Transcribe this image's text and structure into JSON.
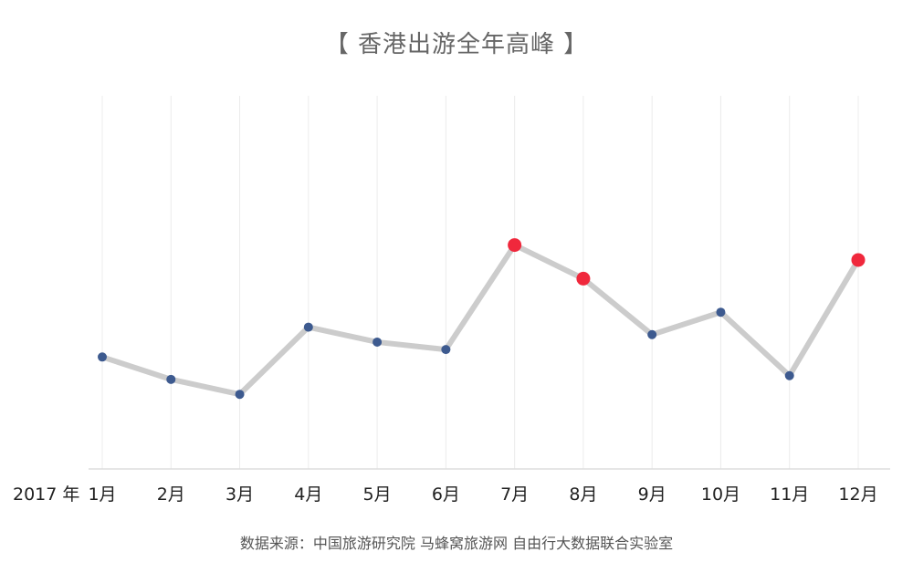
{
  "chart_data": {
    "type": "line",
    "title": "【 香港出游全年高峰 】",
    "x_prefix": "2017 年",
    "categories": [
      "1月",
      "2月",
      "3月",
      "4月",
      "5月",
      "6月",
      "7月",
      "8月",
      "9月",
      "10月",
      "11月",
      "12月"
    ],
    "series": [
      {
        "values": [
          30,
          24,
          20,
          38,
          34,
          32,
          60,
          51,
          36,
          42,
          25,
          56
        ],
        "highlight": [
          false,
          false,
          false,
          false,
          false,
          false,
          true,
          true,
          false,
          false,
          false,
          true
        ]
      }
    ],
    "ylim": [
      0,
      100
    ],
    "y_axis_visible": false,
    "grid": "vertical",
    "line_color": "#cccccc",
    "point_color": "#3d5a8f",
    "highlight_color": "#f0283c",
    "source": "数据来源：中国旅游研究院 马蜂窝旅游网 自由行大数据联合实验室"
  }
}
